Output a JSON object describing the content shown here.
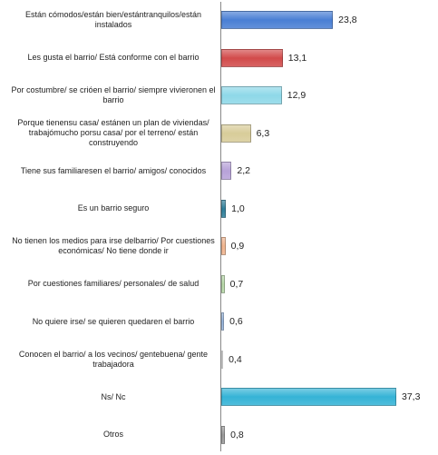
{
  "chart_data": {
    "type": "bar",
    "orientation": "horizontal",
    "categories": [
      "Están cómodos/están bien/estántranquilos/están instalados",
      "Les gusta el barrio/ Está conforme con el barrio",
      "Por costumbre/ se crióen el barrio/ siempre vivieronen el barrio",
      "Porque tienensu casa/ estánen un plan de viviendas/ trabajómucho porsu casa/ por el terreno/ están construyendo",
      "Tiene sus familiaresen el barrio/ amigos/ conocidos",
      "Es un barrio seguro",
      "No tienen los medios para irse delbarrio/ Por cuestiones económicas/ No tiene donde ir",
      "Por cuestiones familiares/ personales/ de salud",
      "No quiere irse/ se quieren quedaren el barrio",
      "Conocen el barrio/ a los vecinos/ gentebuena/ gente trabajadora",
      "Ns/ Nc",
      "Otros"
    ],
    "values": [
      23.8,
      13.1,
      12.9,
      6.3,
      2.2,
      1.0,
      0.9,
      0.7,
      0.6,
      0.4,
      37.3,
      0.8
    ],
    "value_labels": [
      "23,8",
      "13,1",
      "12,9",
      "6,3",
      "2,2",
      "1,0",
      "0,9",
      "0,7",
      "0,6",
      "0,4",
      "37,3",
      "0,8"
    ],
    "colors": [
      "#4a7fd4",
      "#d24b4b",
      "#8ed8e8",
      "#d8cc99",
      "#b7a2d8",
      "#2f7f9a",
      "#f0b48e",
      "#b7d8a8",
      "#9ab8e0",
      "#8a2a2a",
      "#35b3d6",
      "#9a9a9a"
    ]
  }
}
